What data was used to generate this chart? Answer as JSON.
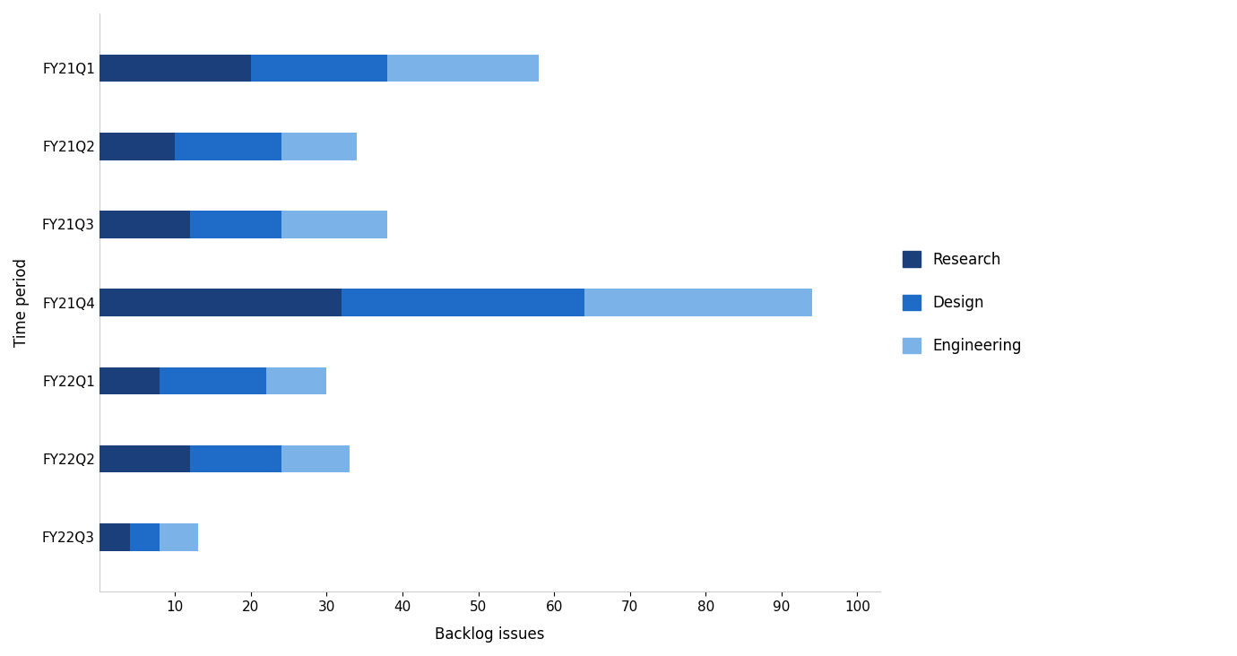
{
  "categories": [
    "FY21Q1",
    "FY21Q2",
    "FY21Q3",
    "FY21Q4",
    "FY22Q1",
    "FY22Q2",
    "FY22Q3"
  ],
  "series": {
    "Research": [
      20,
      10,
      12,
      32,
      8,
      12,
      4
    ],
    "Design": [
      18,
      14,
      12,
      32,
      14,
      12,
      4
    ],
    "Engineering": [
      20,
      10,
      14,
      30,
      8,
      9,
      5
    ]
  },
  "colors": {
    "Research": "#1a3f7a",
    "Design": "#1e6cc8",
    "Engineering": "#7bb3e8"
  },
  "xlabel": "Backlog issues",
  "ylabel": "Time period",
  "xlim": [
    0,
    103
  ],
  "xticks": [
    10,
    20,
    30,
    40,
    50,
    60,
    70,
    80,
    90,
    100
  ],
  "background_color": "#ffffff",
  "bar_height": 0.35,
  "legend_labels": [
    "Research",
    "Design",
    "Engineering"
  ],
  "axis_fontsize": 12,
  "tick_fontsize": 11
}
